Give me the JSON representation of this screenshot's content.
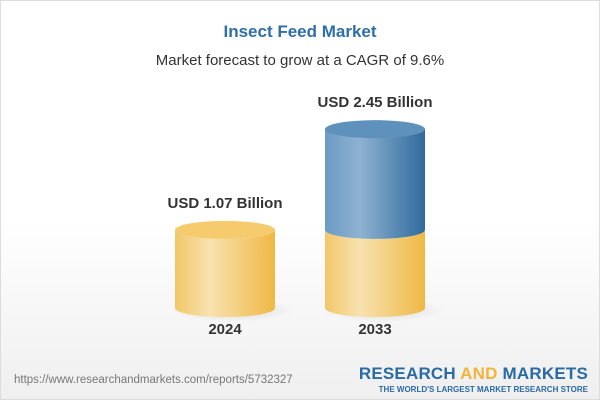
{
  "title": "Insect Feed Market",
  "subtitle": "Market forecast to grow at a CAGR of 9.6%",
  "chart_data": {
    "type": "bar",
    "style": "3d-cylinder",
    "categories": [
      "2024",
      "2033"
    ],
    "values": [
      1.07,
      2.45
    ],
    "data_labels": [
      "USD 1.07 Billion",
      "USD 2.45 Billion"
    ],
    "unit": "USD Billion",
    "colors": {
      "base": "#f2c45a",
      "growth": "#4f86b6"
    }
  },
  "footer": {
    "url": "https://www.researchandmarkets.com/reports/5732327",
    "logo_part1": "RESEARCH ",
    "logo_part2": "AND",
    "logo_part3": " MARKETS",
    "tagline": "THE WORLD'S LARGEST MARKET RESEARCH STORE"
  }
}
